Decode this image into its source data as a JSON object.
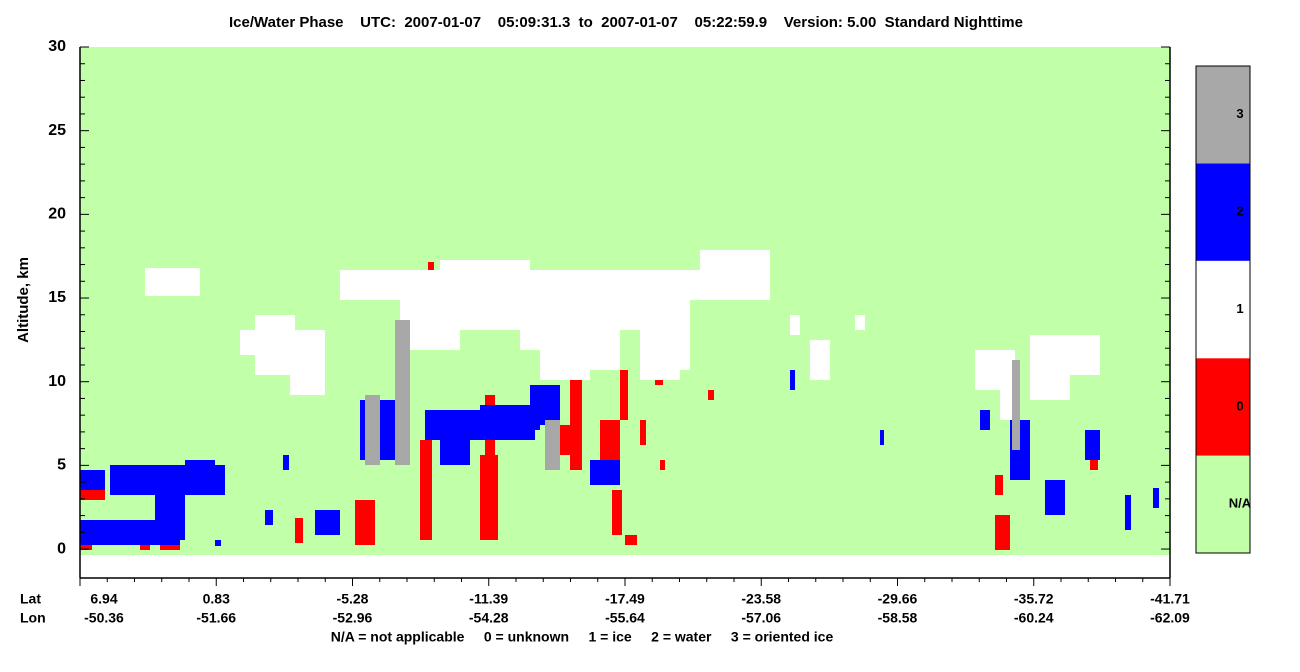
{
  "chart_data": {
    "type": "phase-curtain",
    "title": "Ice/Water Phase    UTC:  2007-01-07    05:09:31.3  to  2007-01-07    05:22:59.9    Version: 5.00  Standard Nighttime",
    "ylabel": "Altitude, km",
    "ylim": [
      -1.73,
      30
    ],
    "yticks": [
      0,
      5,
      10,
      15,
      20,
      25,
      30
    ],
    "xlim": [
      0,
      8
    ],
    "xticks": [
      {
        "value": 0,
        "label": "6.94"
      },
      {
        "value": 1,
        "label": "0.83"
      },
      {
        "value": 2,
        "label": "-5.28"
      },
      {
        "value": 3,
        "label": "-11.39"
      },
      {
        "value": 4,
        "label": "-17.49"
      },
      {
        "value": 5,
        "label": "-23.58"
      },
      {
        "value": 6,
        "label": "-29.66"
      },
      {
        "value": 7,
        "label": "-35.72"
      },
      {
        "value": 8,
        "label": "-41.71"
      }
    ],
    "lon_labels": [
      "-50.36",
      "-51.66",
      "-52.96",
      "-54.28",
      "-55.64",
      "-57.06",
      "-58.58",
      "-60.24",
      "-62.09"
    ],
    "lat_label": "Lat",
    "lon_label": "Lon",
    "colorbar": {
      "labels": [
        "N/A",
        "0",
        "1",
        "2",
        "3"
      ],
      "colors": [
        "#c1ffa8",
        "#ff0000",
        "#ffffff",
        "#0000ff",
        "#a8a8a8"
      ]
    },
    "legend_note": "N/A = not applicable     0 = unknown     1 = ice     2 = water     3 = oriented ice"
  }
}
